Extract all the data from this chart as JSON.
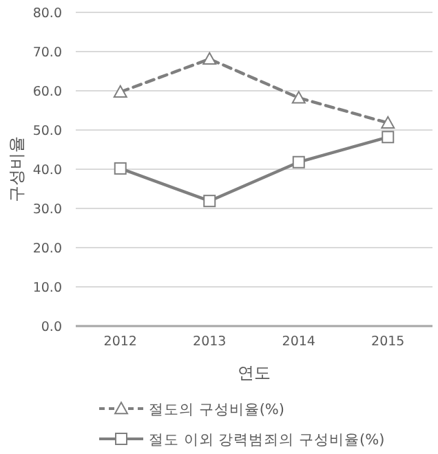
{
  "chart_data": {
    "type": "line",
    "xlabel": "연도",
    "ylabel": "구성비율",
    "categories": [
      "2012",
      "2013",
      "2014",
      "2015"
    ],
    "series": [
      {
        "name": "절도의 구성비율(%)",
        "color": "#7f7f7f",
        "values": [
          59.7,
          68.1,
          58.2,
          51.8
        ],
        "marker": "triangle",
        "line_style": "dashed"
      },
      {
        "name": "절도 이외 강력범죄의 구성비율(%)",
        "color": "#7f7f7f",
        "values": [
          40.2,
          31.9,
          41.8,
          48.2
        ],
        "marker": "square",
        "line_style": "solid"
      }
    ],
    "ylim": [
      0,
      80
    ],
    "yticks": [
      {
        "value": 0,
        "label": "0.0"
      },
      {
        "value": 10,
        "label": "10.0"
      },
      {
        "value": 20,
        "label": "20.0"
      },
      {
        "value": 30,
        "label": "30.0"
      },
      {
        "value": 40,
        "label": "40.0"
      },
      {
        "value": 50,
        "label": "50.0"
      },
      {
        "value": 60,
        "label": "60.0"
      },
      {
        "value": 70,
        "label": "70.0"
      },
      {
        "value": 80,
        "label": "80.0"
      }
    ],
    "grid": "y",
    "legend": "bottom"
  }
}
